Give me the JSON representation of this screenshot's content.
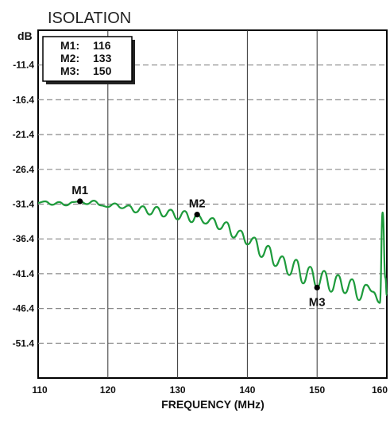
{
  "chart_data": {
    "type": "line",
    "title": "ISOLATION",
    "ylabel": "dB",
    "xlabel": "FREQUENCY (MHz)",
    "xlim": [
      110,
      160
    ],
    "ylim": [
      -56.4,
      -6.4
    ],
    "x_ticks": [
      110,
      120,
      130,
      140,
      150,
      160
    ],
    "x_tick_labels": [
      "110",
      "120",
      "130",
      "140",
      "150",
      "160"
    ],
    "y_ticks": [
      -11.4,
      -16.4,
      -21.4,
      -26.4,
      -31.4,
      -36.4,
      -41.4,
      -46.4,
      -51.4
    ],
    "y_tick_labels": [
      "-11.4",
      "-16.4",
      "-21.4",
      "-26.4",
      "-31.4",
      "-36.4",
      "-41.4",
      "-46.4",
      "-51.4"
    ],
    "grid": true,
    "line_color": "#1e9b3c",
    "series": [
      {
        "x": [
          110,
          111,
          112,
          113,
          114,
          115,
          116,
          117,
          118,
          119,
          120,
          121,
          122,
          123,
          124,
          125,
          126,
          127,
          128,
          129,
          130,
          131,
          132,
          132.8,
          134,
          135,
          136,
          137,
          138,
          139,
          140,
          141,
          142,
          143,
          144,
          145,
          146,
          147,
          148,
          149,
          150,
          151,
          152,
          153,
          154,
          155,
          156,
          157,
          158,
          159,
          159.4,
          159.8,
          160
        ],
        "y": [
          -31.2,
          -31.0,
          -31.5,
          -31.1,
          -31.6,
          -31.1,
          -31.0,
          -31.4,
          -30.9,
          -31.6,
          -31.8,
          -31.3,
          -32.0,
          -31.6,
          -32.6,
          -31.7,
          -32.9,
          -31.8,
          -33.2,
          -32.2,
          -33.6,
          -32.4,
          -34.0,
          -32.9,
          -34.2,
          -33.4,
          -35.0,
          -34.0,
          -36.2,
          -35.2,
          -37.2,
          -36.2,
          -39.0,
          -37.4,
          -40.3,
          -38.9,
          -41.6,
          -39.4,
          -42.8,
          -40.4,
          -43.4,
          -41.0,
          -44.0,
          -41.6,
          -44.2,
          -42.2,
          -45.2,
          -43.0,
          -44.0,
          -45.6,
          -32.6,
          -42.0,
          -44.5
        ]
      }
    ],
    "markers": [
      {
        "label": "M1",
        "x": 116,
        "y": -31.0
      },
      {
        "label": "M2",
        "x": 132.8,
        "y": -32.9
      },
      {
        "label": "M3",
        "x": 150,
        "y": -43.4
      }
    ],
    "legend": {
      "placement": "top-left",
      "entries": [
        {
          "name": "M1:",
          "value": "116"
        },
        {
          "name": "M2:",
          "value": "133"
        },
        {
          "name": "M3:",
          "value": "150"
        }
      ]
    }
  }
}
